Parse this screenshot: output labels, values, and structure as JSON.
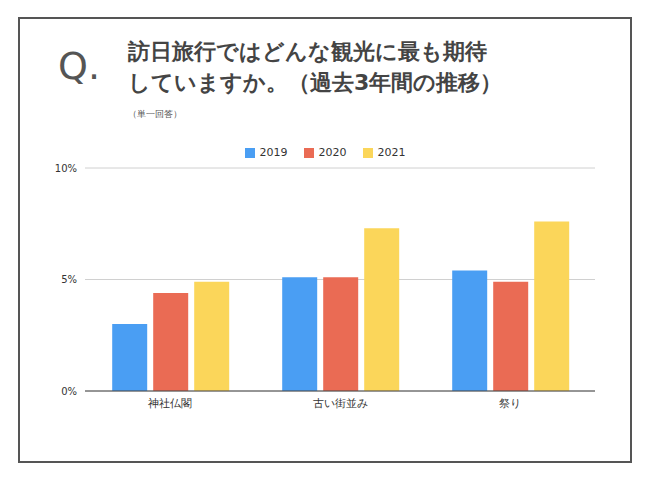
{
  "chart_data": {
    "type": "bar",
    "title_prefix": "Q.",
    "title": [
      "訪日旅行ではどんな観光に最も期待",
      "していますか。（過去3年間の推移）"
    ],
    "subtitle": "（単一回答）",
    "categories": [
      "神社仏閣",
      "古い街並み",
      "祭り"
    ],
    "series": [
      {
        "name": "2019",
        "color": "#4a9ef3",
        "values": [
          3.0,
          5.1,
          5.4
        ]
      },
      {
        "name": "2020",
        "color": "#ea6b54",
        "values": [
          4.4,
          5.1,
          4.9
        ]
      },
      {
        "name": "2021",
        "color": "#fbd65a",
        "values": [
          4.9,
          7.3,
          7.6
        ]
      }
    ],
    "ylim": [
      0,
      10
    ],
    "yticks": [
      {
        "value": 0,
        "label": "0%"
      },
      {
        "value": 5,
        "label": "5%"
      },
      {
        "value": 10,
        "label": "10%"
      }
    ],
    "grid": true
  }
}
